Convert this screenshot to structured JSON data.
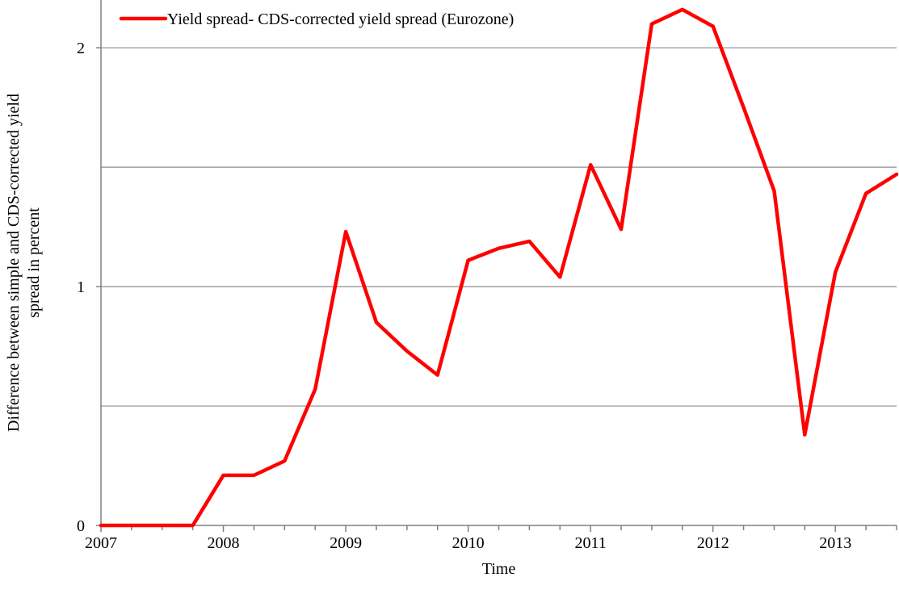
{
  "chart_data": {
    "type": "line",
    "title": "",
    "xlabel": "Time",
    "ylabel_line1": "Difference between simple and CDS-corrected yield",
    "ylabel_line2": "spread in percent",
    "xlim": [
      2007.0,
      2013.5
    ],
    "ylim": [
      0,
      2.2
    ],
    "grid": "horizontal",
    "legend_position": "top-left",
    "x_ticks": [
      "2007",
      "2008",
      "2009",
      "2010",
      "2011",
      "2012",
      "2013"
    ],
    "y_ticks": [
      "0",
      "1",
      "2"
    ],
    "y_tick_values": [
      0,
      1,
      2
    ],
    "gridline_values": [
      0.5,
      1.0,
      1.5,
      2.0
    ],
    "series": [
      {
        "name": "Yield spread- CDS-corrected yield spread (Eurozone)",
        "color": "#ff0000",
        "x": [
          2007.0,
          2007.25,
          2007.5,
          2007.75,
          2008.0,
          2008.25,
          2008.5,
          2008.75,
          2009.0,
          2009.25,
          2009.5,
          2009.75,
          2010.0,
          2010.25,
          2010.5,
          2010.75,
          2011.0,
          2011.25,
          2011.5,
          2011.75,
          2012.0,
          2012.25,
          2012.5,
          2012.75,
          2013.0,
          2013.25,
          2013.5
        ],
        "values": [
          0.0,
          0.0,
          0.0,
          0.0,
          0.21,
          0.21,
          0.27,
          0.57,
          1.23,
          0.85,
          0.73,
          0.63,
          1.11,
          1.16,
          1.19,
          1.04,
          1.51,
          1.24,
          2.1,
          2.16,
          2.09,
          1.75,
          1.4,
          0.38,
          1.06,
          1.39,
          1.47
        ]
      }
    ]
  }
}
